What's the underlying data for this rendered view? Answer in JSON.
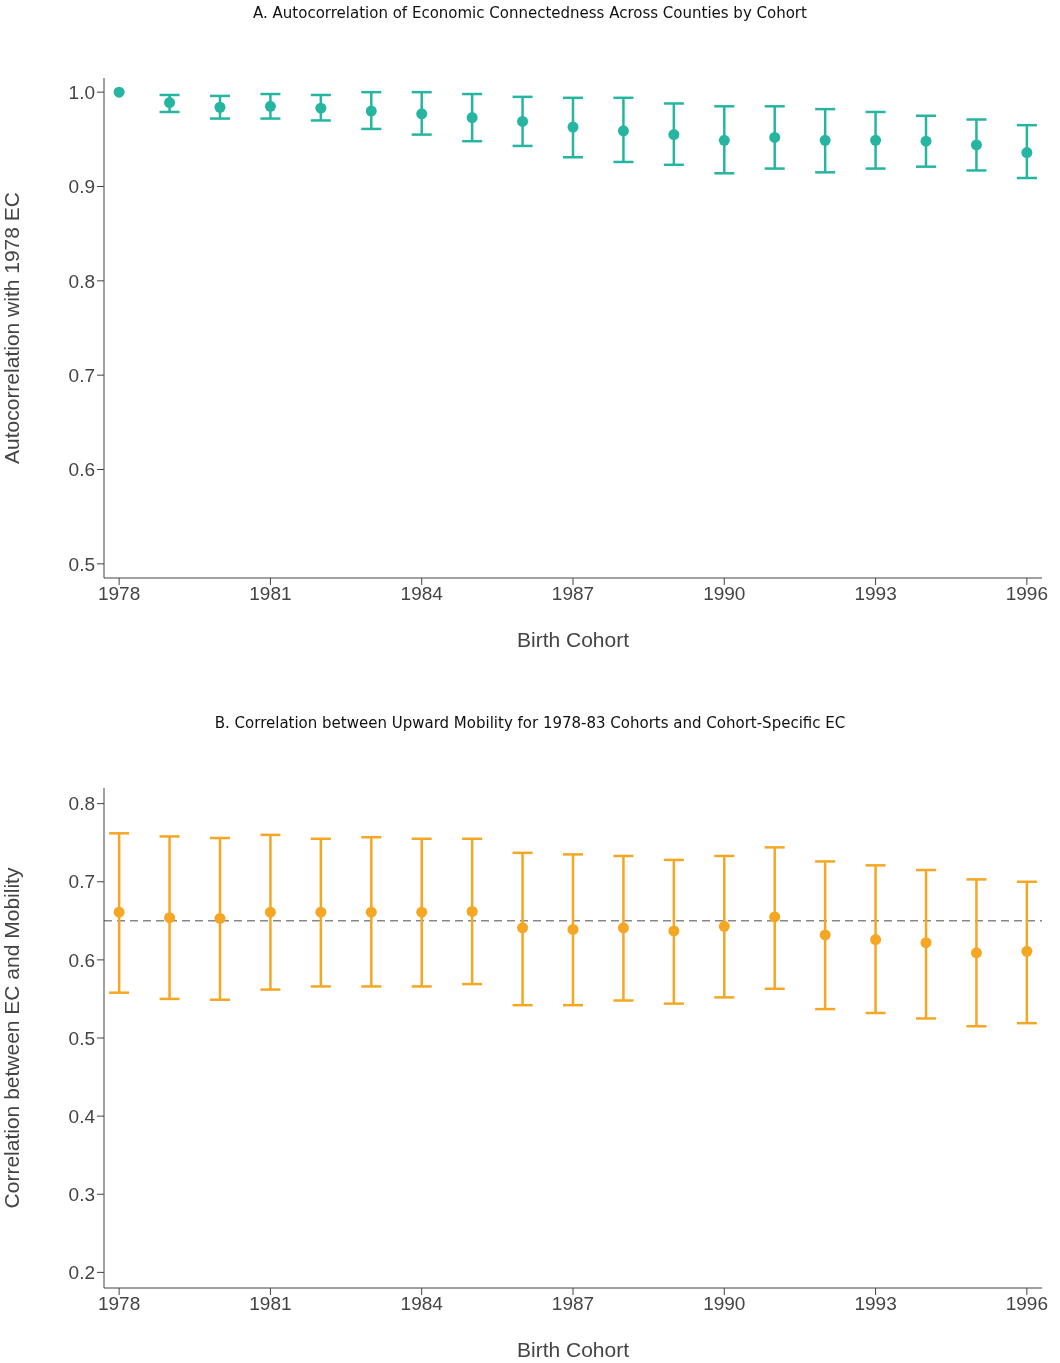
{
  "chart_data": [
    {
      "type": "scatter",
      "title": "A. Autocorrelation of Economic Connectedness Across Counties by Cohort",
      "xlabel": "Birth Cohort",
      "ylabel": "Autocorrelation with 1978 EC",
      "x": [
        1978,
        1979,
        1980,
        1981,
        1982,
        1983,
        1984,
        1985,
        1986,
        1987,
        1988,
        1989,
        1990,
        1991,
        1992,
        1993,
        1994,
        1995,
        1996
      ],
      "series": [
        {
          "color": "#26b5a0",
          "values": [
            1.0,
            0.989,
            0.984,
            0.985,
            0.983,
            0.98,
            0.977,
            0.973,
            0.969,
            0.963,
            0.959,
            0.955,
            0.949,
            0.952,
            0.949,
            0.949,
            0.948,
            0.944,
            0.936
          ],
          "errors": [
            null,
            [
              0.979,
              0.997
            ],
            [
              0.972,
              0.996
            ],
            [
              0.972,
              0.998
            ],
            [
              0.97,
              0.997
            ],
            [
              0.961,
              1.0
            ],
            [
              0.955,
              1.0
            ],
            [
              0.948,
              0.998
            ],
            [
              0.943,
              0.995
            ],
            [
              0.931,
              0.994
            ],
            [
              0.926,
              0.994
            ],
            [
              0.923,
              0.988
            ],
            [
              0.914,
              0.985
            ],
            [
              0.919,
              0.985
            ],
            [
              0.915,
              0.982
            ],
            [
              0.919,
              0.979
            ],
            [
              0.921,
              0.975
            ],
            [
              0.917,
              0.971
            ],
            [
              0.909,
              0.965
            ]
          ]
        }
      ],
      "xlim": [
        1977.7,
        1996.3
      ],
      "xticks": [
        1978,
        1981,
        1984,
        1987,
        1990,
        1993,
        1996
      ],
      "ylim": [
        0.485,
        1.015
      ],
      "yticks": [
        {
          "value": 0.5,
          "label": "0.5"
        },
        {
          "value": 0.6,
          "label": "0.6"
        },
        {
          "value": 0.7,
          "label": "0.7"
        },
        {
          "value": 0.8,
          "label": "0.8"
        },
        {
          "value": 0.9,
          "label": "0.9"
        },
        {
          "value": 1,
          "label": "1.0"
        }
      ],
      "grid": false,
      "legend": false,
      "marker": "circle"
    },
    {
      "type": "scatter",
      "title": "B. Correlation between Upward Mobility for 1978-83 Cohorts and Cohort-Specific EC",
      "xlabel": "Birth Cohort",
      "ylabel": "Correlation between EC and Mobility",
      "x": [
        1978,
        1979,
        1980,
        1981,
        1982,
        1983,
        1984,
        1985,
        1986,
        1987,
        1988,
        1989,
        1990,
        1991,
        1992,
        1993,
        1994,
        1995,
        1996
      ],
      "series": [
        {
          "color": "#f5a623",
          "values": [
            0.661,
            0.654,
            0.653,
            0.661,
            0.661,
            0.661,
            0.661,
            0.662,
            0.641,
            0.639,
            0.641,
            0.637,
            0.643,
            0.655,
            0.632,
            0.626,
            0.622,
            0.609,
            0.611
          ],
          "errors": [
            [
              0.558,
              0.762
            ],
            [
              0.55,
              0.758
            ],
            [
              0.549,
              0.756
            ],
            [
              0.562,
              0.76
            ],
            [
              0.566,
              0.755
            ],
            [
              0.566,
              0.757
            ],
            [
              0.566,
              0.755
            ],
            [
              0.569,
              0.755
            ],
            [
              0.542,
              0.737
            ],
            [
              0.542,
              0.735
            ],
            [
              0.548,
              0.733
            ],
            [
              0.544,
              0.728
            ],
            [
              0.552,
              0.733
            ],
            [
              0.563,
              0.744
            ],
            [
              0.537,
              0.726
            ],
            [
              0.532,
              0.721
            ],
            [
              0.525,
              0.715
            ],
            [
              0.515,
              0.703
            ],
            [
              0.519,
              0.7
            ]
          ]
        }
      ],
      "ref_lines": [
        {
          "axis": "y",
          "value": 0.65,
          "color": "#888888",
          "line_style": "dashed"
        }
      ],
      "xlim": [
        1977.7,
        1996.3
      ],
      "xticks": [
        1978,
        1981,
        1984,
        1987,
        1990,
        1993,
        1996
      ],
      "ylim": [
        0.18,
        0.82
      ],
      "yticks": [
        {
          "value": 0.2,
          "label": "0.2"
        },
        {
          "value": 0.3,
          "label": "0.3"
        },
        {
          "value": 0.4,
          "label": "0.4"
        },
        {
          "value": 0.5,
          "label": "0.5"
        },
        {
          "value": 0.6,
          "label": "0.6"
        },
        {
          "value": 0.7,
          "label": "0.7"
        },
        {
          "value": 0.8,
          "label": "0.8"
        }
      ],
      "grid": false,
      "legend": false,
      "marker": "circle"
    }
  ]
}
